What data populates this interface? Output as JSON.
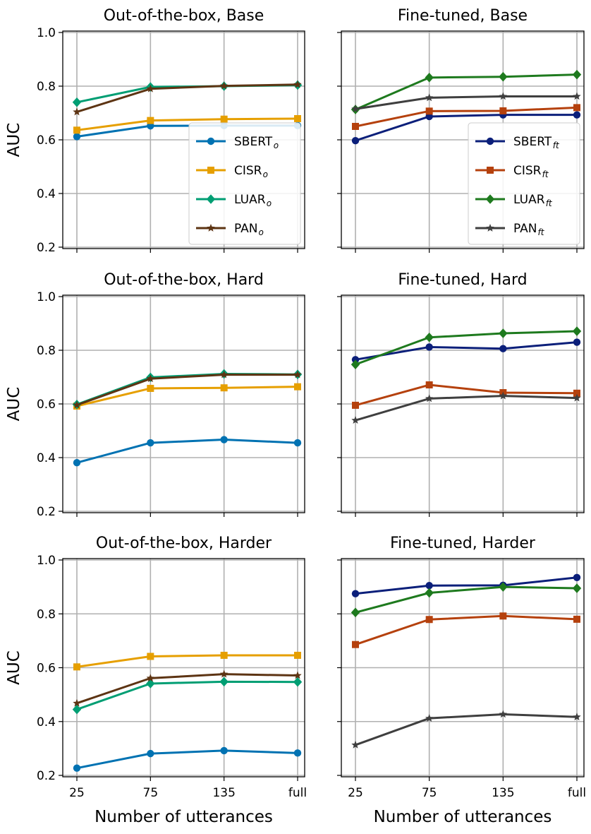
{
  "shared": {
    "xlabel": "Number of utterances",
    "ylabel": "AUC",
    "x_categories": [
      "25",
      "75",
      "135",
      "full"
    ],
    "y_ticks": [
      "0.2",
      "0.4",
      "0.6",
      "0.8",
      "1.0"
    ],
    "ylim": [
      0.2,
      1.0
    ]
  },
  "chart_data": [
    {
      "type": "line",
      "title": "Out-of-the-box, Base",
      "xlabel": "",
      "ylabel": "AUC",
      "categories": [
        "25",
        "75",
        "135",
        "full"
      ],
      "ylim": [
        0.2,
        1.0
      ],
      "grid": true,
      "legend": "lower-right",
      "series": [
        {
          "name": "SBERT",
          "sub": "o",
          "color": "#0072B2",
          "marker": "circle",
          "values": [
            0.612,
            0.652,
            0.653,
            0.653
          ]
        },
        {
          "name": "CISR",
          "sub": "o",
          "color": "#E69F00",
          "marker": "square",
          "values": [
            0.636,
            0.672,
            0.677,
            0.679
          ]
        },
        {
          "name": "LUAR",
          "sub": "o",
          "color": "#009E73",
          "marker": "diamond",
          "values": [
            0.74,
            0.797,
            0.8,
            0.804
          ]
        },
        {
          "name": "PAN",
          "sub": "o",
          "color": "#5D3413",
          "marker": "star",
          "values": [
            0.704,
            0.79,
            0.801,
            0.806
          ]
        }
      ]
    },
    {
      "type": "line",
      "title": "Fine-tuned, Base",
      "xlabel": "",
      "ylabel": "",
      "categories": [
        "25",
        "75",
        "135",
        "full"
      ],
      "ylim": [
        0.2,
        1.0
      ],
      "grid": true,
      "legend": "lower-right",
      "series": [
        {
          "name": "SBERT",
          "sub": "ft",
          "color": "#0B1F7A",
          "marker": "circle",
          "values": [
            0.597,
            0.687,
            0.693,
            0.693
          ]
        },
        {
          "name": "CISR",
          "sub": "ft",
          "color": "#B5410D",
          "marker": "square",
          "values": [
            0.65,
            0.707,
            0.708,
            0.72
          ]
        },
        {
          "name": "LUAR",
          "sub": "ft",
          "color": "#1E7A1E",
          "marker": "diamond",
          "values": [
            0.713,
            0.832,
            0.835,
            0.843
          ]
        },
        {
          "name": "PAN",
          "sub": "ft",
          "color": "#3F3F3F",
          "marker": "star",
          "values": [
            0.715,
            0.757,
            0.762,
            0.762
          ]
        }
      ]
    },
    {
      "type": "line",
      "title": "Out-of-the-box, Hard",
      "xlabel": "",
      "ylabel": "AUC",
      "categories": [
        "25",
        "75",
        "135",
        "full"
      ],
      "ylim": [
        0.2,
        1.0
      ],
      "grid": true,
      "legend": "none",
      "series": [
        {
          "name": "SBERT",
          "sub": "o",
          "color": "#0072B2",
          "marker": "circle",
          "values": [
            0.381,
            0.455,
            0.467,
            0.455
          ]
        },
        {
          "name": "CISR",
          "sub": "o",
          "color": "#E69F00",
          "marker": "square",
          "values": [
            0.592,
            0.658,
            0.66,
            0.664
          ]
        },
        {
          "name": "LUAR",
          "sub": "o",
          "color": "#009E73",
          "marker": "diamond",
          "values": [
            0.598,
            0.699,
            0.712,
            0.71
          ]
        },
        {
          "name": "PAN",
          "sub": "o",
          "color": "#5D3413",
          "marker": "star",
          "values": [
            0.596,
            0.694,
            0.709,
            0.709
          ]
        }
      ]
    },
    {
      "type": "line",
      "title": "Fine-tuned, Hard",
      "xlabel": "",
      "ylabel": "",
      "categories": [
        "25",
        "75",
        "135",
        "full"
      ],
      "ylim": [
        0.2,
        1.0
      ],
      "grid": true,
      "legend": "none",
      "series": [
        {
          "name": "SBERT",
          "sub": "ft",
          "color": "#0B1F7A",
          "marker": "circle",
          "values": [
            0.765,
            0.812,
            0.806,
            0.83
          ]
        },
        {
          "name": "CISR",
          "sub": "ft",
          "color": "#B5410D",
          "marker": "square",
          "values": [
            0.595,
            0.671,
            0.642,
            0.64
          ]
        },
        {
          "name": "LUAR",
          "sub": "ft",
          "color": "#1E7A1E",
          "marker": "diamond",
          "values": [
            0.747,
            0.848,
            0.863,
            0.871
          ]
        },
        {
          "name": "PAN",
          "sub": "ft",
          "color": "#3F3F3F",
          "marker": "star",
          "values": [
            0.539,
            0.62,
            0.63,
            0.622
          ]
        }
      ]
    },
    {
      "type": "line",
      "title": "Out-of-the-box, Harder",
      "xlabel": "Number of utterances",
      "ylabel": "AUC",
      "categories": [
        "25",
        "75",
        "135",
        "full"
      ],
      "ylim": [
        0.2,
        1.0
      ],
      "grid": true,
      "legend": "none",
      "series": [
        {
          "name": "SBERT",
          "sub": "o",
          "color": "#0072B2",
          "marker": "circle",
          "values": [
            0.227,
            0.281,
            0.292,
            0.283
          ]
        },
        {
          "name": "CISR",
          "sub": "o",
          "color": "#E69F00",
          "marker": "square",
          "values": [
            0.603,
            0.642,
            0.646,
            0.646
          ]
        },
        {
          "name": "LUAR",
          "sub": "o",
          "color": "#009E73",
          "marker": "diamond",
          "values": [
            0.445,
            0.541,
            0.548,
            0.547
          ]
        },
        {
          "name": "PAN",
          "sub": "o",
          "color": "#5D3413",
          "marker": "star",
          "values": [
            0.468,
            0.561,
            0.576,
            0.571
          ]
        }
      ]
    },
    {
      "type": "line",
      "title": "Fine-tuned, Harder",
      "xlabel": "Number of utterances",
      "ylabel": "",
      "categories": [
        "25",
        "75",
        "135",
        "full"
      ],
      "ylim": [
        0.2,
        1.0
      ],
      "grid": true,
      "legend": "none",
      "series": [
        {
          "name": "SBERT",
          "sub": "ft",
          "color": "#0B1F7A",
          "marker": "circle",
          "values": [
            0.875,
            0.905,
            0.906,
            0.935
          ]
        },
        {
          "name": "CISR",
          "sub": "ft",
          "color": "#B5410D",
          "marker": "square",
          "values": [
            0.686,
            0.779,
            0.792,
            0.78
          ]
        },
        {
          "name": "LUAR",
          "sub": "ft",
          "color": "#1E7A1E",
          "marker": "diamond",
          "values": [
            0.805,
            0.878,
            0.9,
            0.895
          ]
        },
        {
          "name": "PAN",
          "sub": "ft",
          "color": "#3F3F3F",
          "marker": "star",
          "values": [
            0.313,
            0.412,
            0.427,
            0.417
          ]
        }
      ]
    }
  ]
}
